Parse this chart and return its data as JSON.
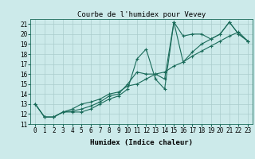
{
  "title": "Courbe de l'humidex pour Vevey",
  "xlabel": "Humidex (Indice chaleur)",
  "bg_color": "#cceaea",
  "line_color": "#1a6b5a",
  "grid_color": "#aacccc",
  "series_x": [
    0,
    1,
    2,
    3,
    4,
    5,
    6,
    7,
    8,
    9,
    10,
    11,
    12,
    13,
    14,
    15,
    16,
    17,
    18,
    19,
    20,
    21,
    22,
    23
  ],
  "series1": [
    13.0,
    11.7,
    11.7,
    12.2,
    12.2,
    12.2,
    12.5,
    13.0,
    13.5,
    13.8,
    14.5,
    17.5,
    18.5,
    15.5,
    14.5,
    21.2,
    19.8,
    20.0,
    20.0,
    19.5,
    20.0,
    21.2,
    20.0,
    19.3
  ],
  "series2": [
    13.0,
    11.7,
    11.7,
    12.2,
    12.3,
    12.5,
    12.8,
    13.2,
    13.8,
    14.0,
    15.0,
    16.2,
    16.0,
    16.0,
    15.5,
    21.2,
    17.2,
    18.2,
    19.0,
    19.5,
    20.0,
    21.2,
    20.0,
    19.3
  ],
  "series3": [
    13.0,
    11.7,
    11.7,
    12.2,
    12.5,
    13.0,
    13.2,
    13.5,
    14.0,
    14.2,
    14.8,
    15.0,
    15.5,
    16.0,
    16.2,
    16.8,
    17.2,
    17.8,
    18.3,
    18.8,
    19.3,
    19.8,
    20.2,
    19.3
  ],
  "xlim": [
    -0.5,
    23.5
  ],
  "ylim": [
    11,
    21.5
  ],
  "yticks": [
    11,
    12,
    13,
    14,
    15,
    16,
    17,
    18,
    19,
    20,
    21
  ],
  "xticks": [
    0,
    1,
    2,
    3,
    4,
    5,
    6,
    7,
    8,
    9,
    10,
    11,
    12,
    13,
    14,
    15,
    16,
    17,
    18,
    19,
    20,
    21,
    22,
    23
  ],
  "title_fontsize": 6.5,
  "label_fontsize": 6.5,
  "tick_fontsize": 5.5
}
